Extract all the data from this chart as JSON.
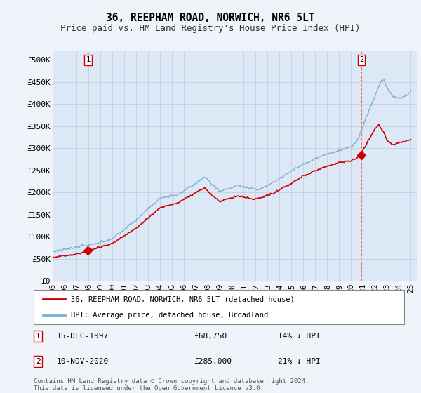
{
  "title": "36, REEPHAM ROAD, NORWICH, NR6 5LT",
  "subtitle": "Price paid vs. HM Land Registry's House Price Index (HPI)",
  "ylabel_ticks": [
    0,
    50000,
    100000,
    150000,
    200000,
    250000,
    300000,
    350000,
    400000,
    450000,
    500000
  ],
  "ylabel_labels": [
    "£0",
    "£50K",
    "£100K",
    "£150K",
    "£200K",
    "£250K",
    "£300K",
    "£350K",
    "£400K",
    "£450K",
    "£500K"
  ],
  "xlim_left": 1995.0,
  "xlim_right": 2025.5,
  "ylim_bottom": 0,
  "ylim_top": 520000,
  "sale1_x": 1997.96,
  "sale1_y": 68750,
  "sale2_x": 2020.86,
  "sale2_y": 285000,
  "sale_color": "#cc0000",
  "hpi_color": "#7ab0d4",
  "line_color": "#cc0000",
  "plot_bg_color": "#dce8f5",
  "legend_label1": "36, REEPHAM ROAD, NORWICH, NR6 5LT (detached house)",
  "legend_label2": "HPI: Average price, detached house, Broadland",
  "annot1_num": "1",
  "annot1_date": "15-DEC-1997",
  "annot1_price": "£68,750",
  "annot1_hpi": "14% ↓ HPI",
  "annot2_num": "2",
  "annot2_date": "10-NOV-2020",
  "annot2_price": "£285,000",
  "annot2_hpi": "21% ↓ HPI",
  "footnote": "Contains HM Land Registry data © Crown copyright and database right 2024.\nThis data is licensed under the Open Government Licence v3.0.",
  "bg_color": "#f0f4fa",
  "grid_color": "#bbccdd",
  "title_fontsize": 10.5,
  "subtitle_fontsize": 9,
  "tick_fontsize": 8,
  "xticks": [
    1995,
    1996,
    1997,
    1998,
    1999,
    2000,
    2001,
    2002,
    2003,
    2004,
    2005,
    2006,
    2007,
    2008,
    2009,
    2010,
    2011,
    2012,
    2013,
    2014,
    2015,
    2016,
    2017,
    2018,
    2019,
    2020,
    2021,
    2022,
    2023,
    2024,
    2025
  ]
}
